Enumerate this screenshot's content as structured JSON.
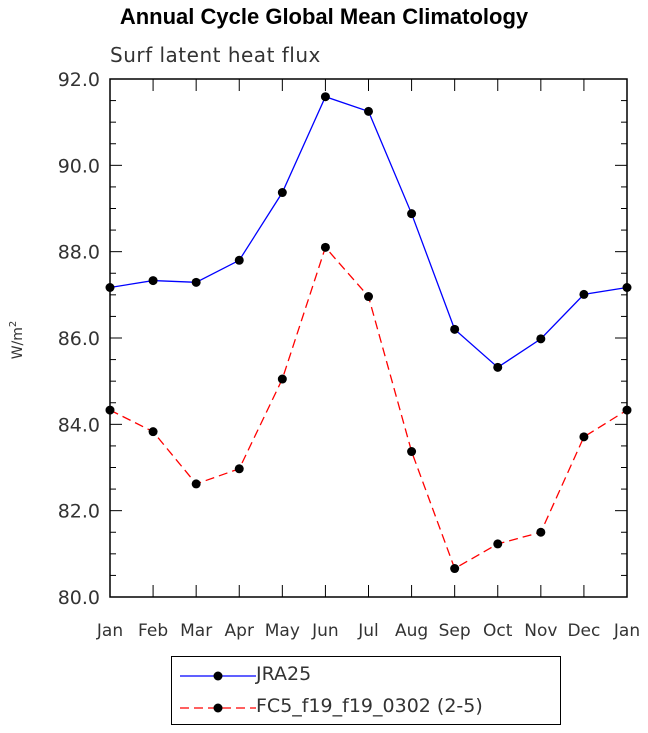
{
  "chart_data": {
    "type": "line",
    "title": "Annual Cycle Global Mean Climatology",
    "subtitle": "Surf latent heat flux",
    "ylabel": "W/m",
    "ylabel_superscript": "2",
    "xlabel": "",
    "ylim": [
      80.0,
      92.0
    ],
    "y_ticks": [
      "80.0",
      "82.0",
      "84.0",
      "86.0",
      "88.0",
      "90.0",
      "92.0"
    ],
    "categories": [
      "Jan",
      "Feb",
      "Mar",
      "Apr",
      "May",
      "Jun",
      "Jul",
      "Aug",
      "Sep",
      "Oct",
      "Nov",
      "Dec",
      "Jan"
    ],
    "series": [
      {
        "name": "JRA25",
        "color": "#0000ff",
        "dash": "solid",
        "values": [
          87.17,
          87.33,
          87.29,
          87.8,
          89.37,
          91.59,
          91.25,
          88.88,
          86.2,
          85.32,
          85.98,
          87.01,
          87.17
        ]
      },
      {
        "name": "FC5_f19_f19_0302 (2-5)",
        "color": "#ff0000",
        "dash": "dashed",
        "values": [
          84.33,
          83.83,
          82.62,
          82.97,
          85.05,
          88.1,
          86.96,
          83.37,
          80.66,
          81.23,
          81.5,
          83.71,
          84.33
        ]
      }
    ],
    "legend_position": "bottom"
  }
}
